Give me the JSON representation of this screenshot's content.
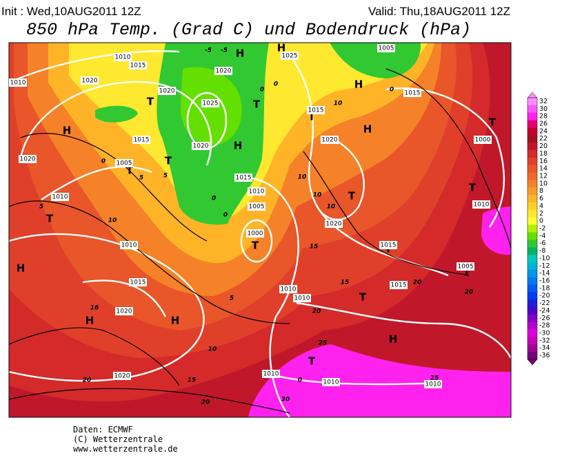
{
  "header": {
    "init": "Init : Wed,10AUG2011 12Z",
    "valid": "Valid: Thu,18AUG2011 12Z",
    "title": "850 hPa Temp. (Grad C) und Bodendruck (hPa)"
  },
  "colorbar": {
    "levels": [
      32,
      30,
      28,
      26,
      24,
      22,
      20,
      18,
      16,
      14,
      12,
      10,
      8,
      6,
      4,
      2,
      0,
      -2,
      -4,
      -6,
      -8,
      -10,
      -12,
      -14,
      -16,
      -18,
      -20,
      -22,
      -24,
      -26,
      -28,
      -30,
      -32,
      -34,
      -36
    ],
    "colors": [
      "#ff8cff",
      "#ff55ff",
      "#ff22ee",
      "#e6006e",
      "#c4002e",
      "#a81020",
      "#c0182a",
      "#d42a2a",
      "#e0402a",
      "#e8562a",
      "#f06a28",
      "#f58228",
      "#fa9a28",
      "#ffb428",
      "#ffd028",
      "#ffe830",
      "#ffff30",
      "#b4f000",
      "#64e000",
      "#32c832",
      "#00b464",
      "#00c8b4",
      "#00b4dc",
      "#0096e6",
      "#0078f0",
      "#005af0",
      "#003cf0",
      "#1e1edc",
      "#5000c8",
      "#8200c8",
      "#b400c8",
      "#dc00dc",
      "#c800b4",
      "#a00096",
      "#780078"
    ]
  },
  "map_labels": [
    "H",
    "T",
    "T",
    "T",
    "T",
    "H",
    "H",
    "H",
    "T",
    "H",
    "T",
    "H",
    "H",
    "H",
    "T",
    "H",
    "T",
    "T",
    "T",
    "H",
    "T",
    "T",
    "T",
    "T",
    "1025",
    "1020",
    "1020",
    "1015",
    "1005",
    "1020",
    "1010",
    "1010",
    "1015",
    "1020",
    "1020",
    "1015",
    "1010",
    "1005",
    "1000",
    "1010",
    "1010",
    "1010",
    "1010",
    "1010",
    "1015",
    "1015",
    "1020",
    "1020",
    "1015",
    "1025",
    "1015",
    "1005",
    "1000",
    "1010",
    "1005",
    "1010",
    "1020",
    "1015",
    "1010",
    "1020",
    "-5",
    "-5",
    "0",
    "0",
    "0",
    "5",
    "5",
    "5",
    "0",
    "0",
    "0",
    "5",
    "10",
    "15",
    "20",
    "20",
    "10",
    "10",
    "10",
    "10",
    "15",
    "15",
    "20",
    "25",
    "30",
    "20",
    "20",
    "25",
    "10",
    "16",
    "0"
  ],
  "footer": [
    "Daten: ECMWF",
    "(C) Wetterzentrale",
    "www.wetterzentrale.de"
  ]
}
